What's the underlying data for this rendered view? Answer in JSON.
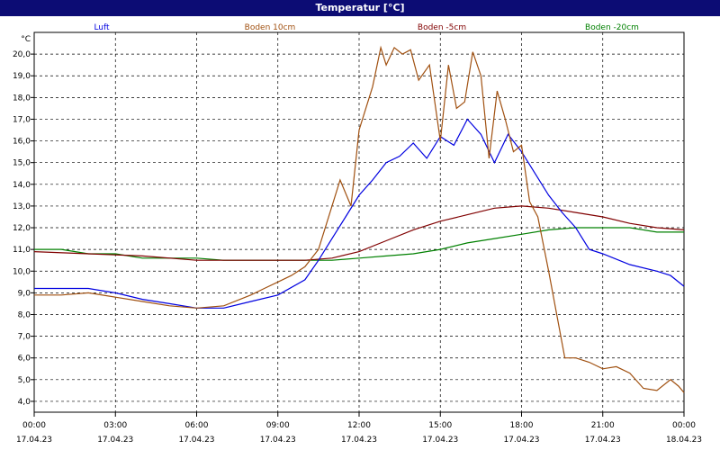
{
  "chart_data": {
    "type": "line",
    "title": "Temperatur [°C]",
    "ylabel": "°C",
    "xlabel": "",
    "ylim": [
      4.0,
      21.0
    ],
    "grid": true,
    "legend_placement": "top",
    "y_ticks": [
      "4,0",
      "5,0",
      "6,0",
      "7,0",
      "8,0",
      "9,0",
      "10,0",
      "11,0",
      "12,0",
      "13,0",
      "14,0",
      "15,0",
      "16,0",
      "17,0",
      "18,0",
      "19,0",
      "20,0"
    ],
    "x_ticks": [
      {
        "time": "00:00",
        "date": "17.04.23"
      },
      {
        "time": "03:00",
        "date": "17.04.23"
      },
      {
        "time": "06:00",
        "date": "17.04.23"
      },
      {
        "time": "09:00",
        "date": "17.04.23"
      },
      {
        "time": "12:00",
        "date": "17.04.23"
      },
      {
        "time": "15:00",
        "date": "17.04.23"
      },
      {
        "time": "18:00",
        "date": "17.04.23"
      },
      {
        "time": "21:00",
        "date": "17.04.23"
      },
      {
        "time": "00:00",
        "date": "18.04.23"
      }
    ],
    "series": [
      {
        "name": "Luft",
        "color": "#0000e0",
        "x": [
          0,
          1,
          2,
          2.5,
          3,
          4,
          5,
          6,
          7,
          8,
          9,
          10,
          10.5,
          11,
          11.5,
          12,
          12.5,
          13,
          13.5,
          14,
          14.5,
          15,
          15.5,
          16,
          16.5,
          17,
          17.5,
          18,
          18.5,
          19,
          19.5,
          20,
          20.5,
          21,
          22,
          23,
          23.5,
          24
        ],
        "y": [
          9.2,
          9.2,
          9.2,
          9.1,
          9.0,
          8.7,
          8.5,
          8.3,
          8.3,
          8.6,
          8.9,
          9.6,
          10.5,
          11.5,
          12.5,
          13.5,
          14.2,
          15.0,
          15.3,
          15.9,
          15.2,
          16.2,
          15.8,
          17.0,
          16.3,
          15.0,
          16.3,
          15.5,
          14.5,
          13.5,
          12.7,
          12.0,
          11.0,
          10.8,
          10.3,
          10.0,
          9.8,
          9.3
        ]
      },
      {
        "name": "Boden 10cm",
        "color": "#a05010",
        "x": [
          0,
          1,
          2,
          3,
          4,
          5,
          6,
          7,
          8,
          8.5,
          9,
          9.5,
          10,
          10.5,
          11,
          11.3,
          11.7,
          12,
          12.5,
          12.8,
          13,
          13.3,
          13.6,
          13.9,
          14.2,
          14.6,
          15,
          15.3,
          15.6,
          15.9,
          16.2,
          16.5,
          16.8,
          17.1,
          17.4,
          17.7,
          18,
          18.3,
          18.6,
          19,
          19.3,
          19.6,
          20,
          20.5,
          21,
          21.5,
          22,
          22.5,
          23,
          23.5,
          23.8,
          24
        ],
        "y": [
          8.9,
          8.9,
          9.0,
          8.8,
          8.6,
          8.4,
          8.3,
          8.4,
          8.9,
          9.2,
          9.5,
          9.8,
          10.2,
          11.0,
          13.0,
          14.2,
          13.0,
          16.5,
          18.5,
          20.3,
          19.5,
          20.3,
          20.0,
          20.2,
          18.8,
          19.5,
          16.0,
          19.5,
          17.5,
          17.8,
          20.1,
          19.0,
          15.2,
          18.3,
          17.0,
          15.5,
          15.8,
          13.2,
          12.5,
          10.0,
          8.0,
          6.0,
          6.0,
          5.8,
          5.5,
          5.6,
          5.3,
          4.6,
          4.5,
          5.0,
          4.7,
          4.4
        ]
      },
      {
        "name": "Boden -5cm",
        "color": "#800000",
        "x": [
          0,
          2,
          4,
          6,
          8,
          10,
          11,
          12,
          13,
          14,
          15,
          16,
          17,
          18,
          19,
          20,
          21,
          22,
          23,
          24
        ],
        "y": [
          10.9,
          10.8,
          10.7,
          10.5,
          10.5,
          10.5,
          10.6,
          10.9,
          11.4,
          11.9,
          12.3,
          12.6,
          12.9,
          13.0,
          12.9,
          12.7,
          12.5,
          12.2,
          12.0,
          11.9
        ]
      },
      {
        "name": "Boden -20cm",
        "color": "#008000",
        "x": [
          0,
          1,
          2,
          3,
          4,
          5,
          6,
          7,
          8,
          9,
          10,
          11,
          12,
          13,
          14,
          15,
          16,
          17,
          18,
          19,
          20,
          21,
          22,
          23,
          24
        ],
        "y": [
          11.0,
          11.0,
          10.8,
          10.8,
          10.6,
          10.6,
          10.6,
          10.5,
          10.5,
          10.5,
          10.5,
          10.5,
          10.6,
          10.7,
          10.8,
          11.0,
          11.3,
          11.5,
          11.7,
          11.9,
          12.0,
          12.0,
          12.0,
          11.8,
          11.8
        ]
      }
    ]
  }
}
